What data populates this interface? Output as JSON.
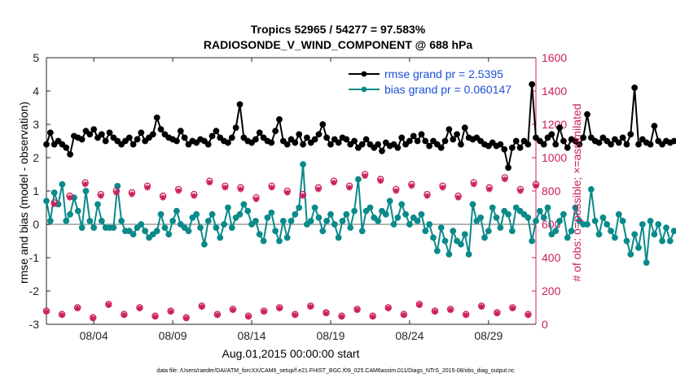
{
  "chart_data": {
    "type": "line",
    "title": "Tropics 52965 / 54277 = 97.583%",
    "subtitle": "RADIOSONDE_V_WIND_COMPONENT @ 688 hPa",
    "xlabel": "Aug.01,2015 00:00:00 start",
    "ylabel": "rmse and bias (model - observation)",
    "y2label": "# of obs: o=possible; ×=assimilated",
    "xlim": [
      1.0,
      32.0
    ],
    "ylim": [
      -3,
      5
    ],
    "y2lim": [
      0,
      1600
    ],
    "x_ticks": [
      {
        "x": 4,
        "label": "08/04"
      },
      {
        "x": 9,
        "label": "08/09"
      },
      {
        "x": 14,
        "label": "08/14"
      },
      {
        "x": 19,
        "label": "08/19"
      },
      {
        "x": 24,
        "label": "08/24"
      },
      {
        "x": 29,
        "label": "08/29"
      }
    ],
    "y_ticks": [
      "-3",
      "-2",
      "-1",
      "0",
      "1",
      "2",
      "3",
      "4",
      "5"
    ],
    "y2_ticks": [
      "0",
      "200",
      "400",
      "600",
      "800",
      "1000",
      "1200",
      "1400",
      "1600"
    ],
    "x_step": 0.25,
    "x_start": 1.0,
    "zero_line": 0,
    "legend": [
      {
        "label": "rmse grand pr = 2.5395",
        "color": "#000000"
      },
      {
        "label": "bias grand pr = 0.060147",
        "color": "#0a8a8a"
      }
    ],
    "series": [
      {
        "name": "rmse",
        "color": "#000000",
        "axis": "left",
        "values": [
          2.4,
          2.75,
          2.4,
          2.5,
          2.4,
          2.3,
          2.1,
          2.65,
          2.6,
          2.55,
          2.8,
          2.7,
          2.85,
          2.6,
          2.7,
          2.5,
          2.75,
          2.6,
          2.5,
          2.4,
          2.5,
          2.6,
          2.4,
          2.55,
          2.75,
          2.5,
          2.6,
          2.7,
          3.2,
          2.85,
          2.7,
          2.6,
          2.55,
          2.5,
          2.8,
          2.6,
          2.4,
          2.5,
          2.45,
          2.55,
          2.5,
          2.4,
          2.65,
          2.8,
          2.6,
          2.5,
          2.45,
          2.6,
          2.9,
          3.6,
          2.6,
          2.5,
          2.45,
          2.55,
          2.75,
          2.6,
          2.5,
          2.45,
          2.8,
          3.15,
          2.5,
          2.4,
          2.55,
          2.45,
          2.7,
          2.4,
          2.6,
          2.45,
          2.55,
          2.7,
          3.0,
          2.6,
          2.4,
          2.55,
          2.45,
          2.6,
          2.55,
          2.4,
          2.5,
          2.3,
          2.4,
          2.55,
          2.4,
          2.3,
          2.4,
          2.2,
          2.45,
          2.35,
          2.4,
          2.3,
          2.6,
          2.4,
          2.5,
          2.65,
          2.5,
          2.7,
          2.5,
          2.35,
          2.5,
          2.4,
          2.3,
          2.5,
          2.85,
          2.55,
          2.7,
          2.4,
          2.9,
          2.6,
          2.55,
          2.6,
          2.5,
          2.4,
          2.35,
          2.45,
          2.35,
          2.4,
          2.25,
          1.7,
          2.3,
          2.5,
          2.3,
          2.5,
          2.4,
          4.2,
          2.6,
          2.5,
          2.4,
          2.6,
          2.7,
          2.4,
          2.9,
          2.5,
          2.3,
          2.55,
          2.5,
          2.4,
          2.6,
          3.3,
          2.6,
          2.5,
          2.45,
          2.6,
          2.5,
          2.4,
          2.55,
          2.45,
          2.6,
          2.4,
          2.7,
          4.1,
          2.4,
          2.55,
          2.45,
          2.4,
          2.95,
          2.5,
          2.4,
          2.5,
          2.45,
          2.5
        ]
      },
      {
        "name": "bias",
        "color": "#0a8a8a",
        "axis": "left",
        "values": [
          0.7,
          0.1,
          0.95,
          0.6,
          1.2,
          0.1,
          0.3,
          0.8,
          0.4,
          -0.1,
          1.0,
          0.1,
          -0.1,
          0.6,
          0.1,
          -0.1,
          -0.1,
          -0.1,
          1.15,
          0.1,
          -0.2,
          -0.2,
          -0.3,
          -0.1,
          0.0,
          -0.2,
          -0.4,
          -0.3,
          -0.2,
          0.3,
          -0.1,
          -0.3,
          0.1,
          0.4,
          0.0,
          -0.1,
          -0.2,
          0.2,
          0.3,
          -0.1,
          -0.6,
          0.1,
          0.3,
          -0.1,
          -0.4,
          0.0,
          0.5,
          -0.1,
          0.2,
          0.3,
          0.6,
          0.4,
          0.0,
          0.1,
          -0.3,
          -0.5,
          0.2,
          0.35,
          -0.2,
          -0.5,
          0.1,
          -0.4,
          0.1,
          0.3,
          0.5,
          1.8,
          0.0,
          0.1,
          0.5,
          0.2,
          -0.2,
          0.1,
          0.3,
          0.0,
          -0.4,
          0.1,
          0.3,
          -0.1,
          0.4,
          1.35,
          -0.2,
          0.4,
          0.5,
          0.2,
          0.1,
          0.4,
          0.3,
          0.7,
          0.0,
          0.2,
          0.6,
          0.3,
          0.0,
          0.2,
          0.1,
          0.3,
          -0.2,
          0.0,
          -0.4,
          -0.8,
          -0.1,
          -0.5,
          -0.9,
          -0.2,
          -0.5,
          -0.6,
          -0.3,
          -0.9,
          0.6,
          0.1,
          0.2,
          -0.4,
          -0.2,
          0.5,
          0.2,
          -0.1,
          0.4,
          0.3,
          -0.2,
          0.5,
          0.4,
          0.3,
          0.2,
          -0.5,
          0.1,
          0.4,
          0.2,
          0.5,
          -0.3,
          -0.2,
          0.1,
          0.3,
          -0.4,
          -0.2,
          0.5,
          0.1,
          0.0,
          0.0,
          1.05,
          0.1,
          -0.3,
          0.2,
          0.0,
          -0.2,
          -0.4,
          0.3,
          0.1,
          -0.5,
          -0.9,
          -0.3,
          -0.7,
          0.0,
          -1.15,
          0.1,
          -0.3,
          0.0,
          -0.5,
          -0.1,
          -0.5,
          -0.2
        ]
      },
      {
        "name": "obs possible (daily)",
        "color": "#cc1f5f",
        "axis": "right",
        "marker": "circle",
        "values": [
          80,
          730,
          60,
          770,
          100,
          850,
          40,
          780,
          120,
          800,
          60,
          790,
          100,
          830,
          50,
          770,
          80,
          810,
          40,
          780,
          110,
          860,
          60,
          830,
          90,
          820,
          50,
          760,
          80,
          830,
          100,
          800,
          60,
          780,
          110,
          820,
          70,
          860,
          50,
          830,
          90,
          900,
          50,
          870,
          100,
          810,
          60,
          840,
          120,
          780,
          80,
          830,
          90,
          770,
          60,
          850,
          110,
          820,
          70,
          880,
          100,
          810,
          60,
          840
        ]
      },
      {
        "name": "obs assimilated (daily)",
        "color": "#cc1f5f",
        "axis": "right",
        "marker": "asterisk",
        "values": [
          75,
          720,
          55,
          760,
          95,
          840,
          35,
          770,
          115,
          790,
          55,
          780,
          95,
          820,
          45,
          760,
          75,
          800,
          35,
          770,
          105,
          850,
          55,
          820,
          85,
          810,
          45,
          750,
          75,
          820,
          95,
          790,
          55,
          770,
          105,
          810,
          65,
          850,
          45,
          820,
          85,
          890,
          45,
          860,
          95,
          800,
          55,
          830,
          115,
          770,
          75,
          820,
          85,
          760,
          55,
          840,
          105,
          810,
          65,
          870,
          95,
          800,
          55,
          830
        ]
      }
    ]
  },
  "footer": "data file: /Users/raeder/DAI/ATM_forcXX/CAM6_setup/f.e21.FHIST_BGC.f09_025.CAM6assim.011/Diags_NTrS_2015-08/obs_diag_output.nc"
}
